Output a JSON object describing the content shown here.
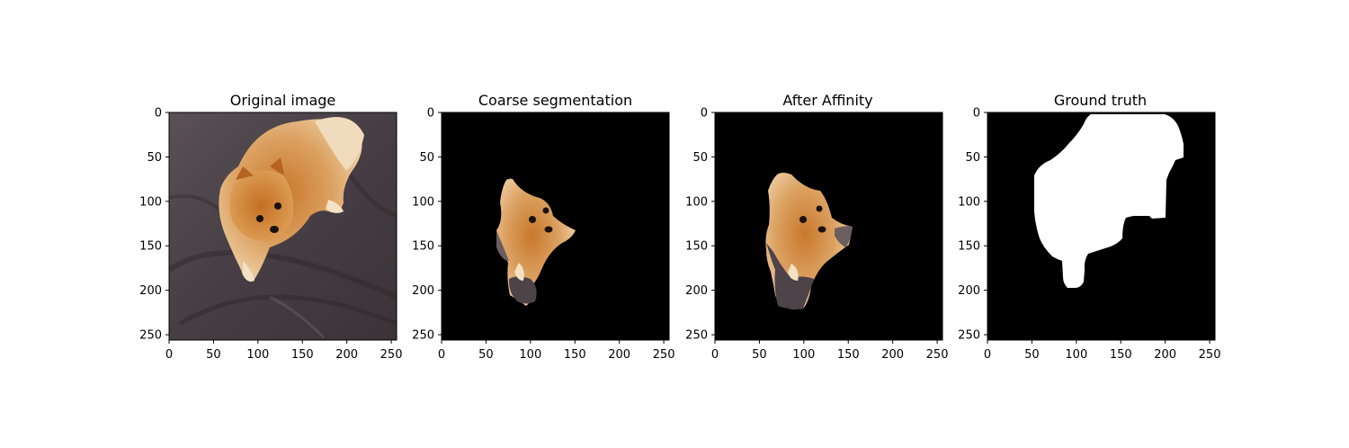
{
  "figure": {
    "panels": [
      {
        "id": "original",
        "title": "Original image",
        "content": "pomeranian-photo"
      },
      {
        "id": "coarse",
        "title": "Coarse segmentation",
        "content": "coarse-masked-dog"
      },
      {
        "id": "affinity",
        "title": "After Affinity",
        "content": "refined-masked-dog"
      },
      {
        "id": "gt",
        "title": "Ground truth",
        "content": "binary-mask"
      }
    ],
    "axis": {
      "x_ticks": [
        "0",
        "50",
        "100",
        "150",
        "200",
        "250"
      ],
      "y_ticks": [
        "0",
        "50",
        "100",
        "150",
        "200",
        "250"
      ],
      "xlim": [
        0,
        256
      ],
      "ylim": [
        256,
        0
      ]
    },
    "colors": {
      "background": "#000000",
      "mask": "#ffffff",
      "fur": "#d99a4e",
      "fur_light": "#e8c08a",
      "carpet": "#4a4248"
    }
  }
}
